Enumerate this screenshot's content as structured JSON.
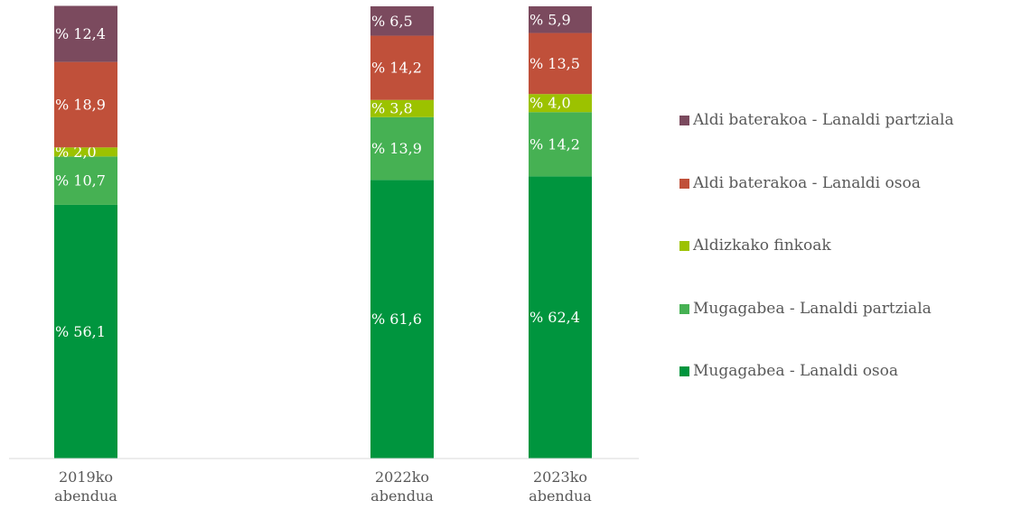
{
  "chart_data": {
    "type": "stacked_bar",
    "categories": [
      "2019ko abendua",
      null,
      "2022ko abendua",
      "2023ko abendua"
    ],
    "ylim": [
      0,
      100
    ],
    "series": [
      {
        "name": "Mugagabea - Lanaldi osoa",
        "color": "#00953e",
        "values": [
          56.1,
          null,
          61.6,
          62.4
        ],
        "value_labels": [
          "% 56,1",
          null,
          "% 61,6",
          "% 62,4"
        ]
      },
      {
        "name": "Mugagabea - Lanaldi partziala",
        "color": "#46b153",
        "values": [
          10.7,
          null,
          13.9,
          14.2
        ],
        "value_labels": [
          "% 10,7",
          null,
          "% 13,9",
          "% 14,2"
        ]
      },
      {
        "name": "Aldizkako finkoak",
        "color": "#9cc200",
        "values": [
          2.0,
          null,
          3.8,
          4.0
        ],
        "value_labels": [
          "% 2,0",
          null,
          "% 3,8",
          "% 4,0"
        ]
      },
      {
        "name": "Aldi baterakoa - Lanaldi osoa",
        "color": "#c0503a",
        "values": [
          18.9,
          null,
          14.2,
          13.5
        ],
        "value_labels": [
          "% 18,9",
          null,
          "% 14,2",
          "% 13,5"
        ]
      },
      {
        "name": "Aldi baterakoa - Lanaldi partziala",
        "color": "#7b4a5e",
        "values": [
          12.4,
          null,
          6.5,
          5.9
        ],
        "value_labels": [
          "% 12,4",
          null,
          "% 6,5",
          "% 5,9"
        ]
      }
    ]
  }
}
